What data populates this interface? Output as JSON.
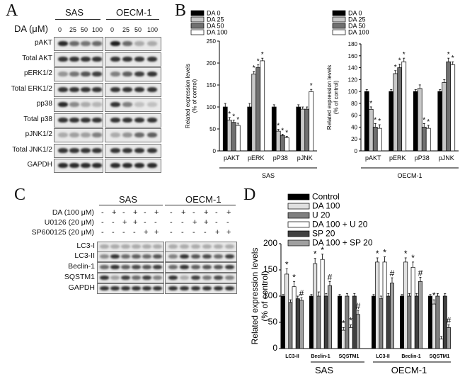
{
  "panels": {
    "A": "A",
    "B": "B",
    "C": "C",
    "D": "D"
  },
  "panelA": {
    "cell_lines": [
      "SAS",
      "OECM-1"
    ],
    "dose_label": "DA (μM)",
    "doses": [
      "0",
      "25",
      "50",
      "100",
      "0",
      "25",
      "50",
      "100"
    ],
    "rows": [
      "pAKT",
      "Total AKT",
      "pERK1/2",
      "Total ERK1/2",
      "pp38",
      "Total p38",
      "pJNK1/2",
      "Total JNK1/2",
      "GAPDH"
    ],
    "band_intensity": [
      [
        0.9,
        0.6,
        0.55,
        0.6,
        0.95,
        0.6,
        0.3,
        0.3
      ],
      [
        0.85,
        0.85,
        0.85,
        0.85,
        0.85,
        0.85,
        0.85,
        0.85
      ],
      [
        0.4,
        0.55,
        0.7,
        0.8,
        0.5,
        0.65,
        0.8,
        0.85
      ],
      [
        0.85,
        0.85,
        0.85,
        0.85,
        0.85,
        0.85,
        0.85,
        0.85
      ],
      [
        0.9,
        0.45,
        0.3,
        0.25,
        0.85,
        0.5,
        0.2,
        0.2
      ],
      [
        0.85,
        0.85,
        0.85,
        0.85,
        0.85,
        0.85,
        0.85,
        0.85
      ],
      [
        0.3,
        0.35,
        0.35,
        0.5,
        0.3,
        0.4,
        0.6,
        0.65
      ],
      [
        0.85,
        0.85,
        0.85,
        0.85,
        0.85,
        0.85,
        0.85,
        0.85
      ],
      [
        0.9,
        0.9,
        0.9,
        0.9,
        0.9,
        0.9,
        0.9,
        0.9
      ]
    ]
  },
  "panelC": {
    "cell_lines": [
      "SAS",
      "OECM-1"
    ],
    "treatments": [
      {
        "label": "DA (100 μM)",
        "marks": [
          "-",
          "+",
          "-",
          "+",
          "-",
          "+",
          "-",
          "+",
          "-",
          "+",
          "-",
          "+"
        ]
      },
      {
        "label": "U0126 (20 μM)",
        "marks": [
          "-",
          "-",
          "+",
          "+",
          "-",
          "-",
          "-",
          "-",
          "+",
          "+",
          "-",
          "-"
        ]
      },
      {
        "label": "SP600125 (20 μM)",
        "marks": [
          "-",
          "-",
          "-",
          "-",
          "+",
          "+",
          "-",
          "-",
          "-",
          "-",
          "+",
          "+"
        ]
      }
    ],
    "rows": [
      "LC3-I",
      "LC3-II",
      "Beclin-1",
      "SQSTM1",
      "GAPDH"
    ],
    "band_intensity": [
      [
        0.3,
        0.3,
        0.3,
        0.3,
        0.3,
        0.3,
        0.3,
        0.3,
        0.3,
        0.3,
        0.3,
        0.3
      ],
      [
        0.45,
        0.85,
        0.6,
        0.65,
        0.6,
        0.7,
        0.5,
        0.85,
        0.7,
        0.75,
        0.6,
        0.8
      ],
      [
        0.6,
        0.85,
        0.65,
        0.75,
        0.7,
        0.8,
        0.6,
        0.85,
        0.65,
        0.7,
        0.7,
        0.8
      ],
      [
        0.85,
        0.35,
        0.8,
        0.6,
        0.8,
        0.5,
        0.85,
        0.3,
        0.8,
        0.55,
        0.75,
        0.5
      ],
      [
        0.85,
        0.85,
        0.85,
        0.85,
        0.85,
        0.85,
        0.85,
        0.85,
        0.85,
        0.85,
        0.85,
        0.85
      ]
    ]
  },
  "chart_data": [
    {
      "type": "bar",
      "panel": "B-left",
      "categories": [
        "pAKT",
        "pERK",
        "pP38",
        "pJNK"
      ],
      "series": [
        {
          "name": "DA 0",
          "values": [
            100,
            100,
            100,
            100
          ],
          "errors": [
            8,
            8,
            5,
            5
          ],
          "stars": [
            false,
            false,
            false,
            false
          ]
        },
        {
          "name": "DA 25",
          "values": [
            70,
            175,
            45,
            95
          ],
          "errors": [
            6,
            6,
            4,
            5
          ],
          "stars": [
            true,
            true,
            true,
            false
          ]
        },
        {
          "name": "DA 50",
          "values": [
            65,
            190,
            35,
            95
          ],
          "errors": [
            5,
            6,
            3,
            5
          ],
          "stars": [
            true,
            true,
            true,
            false
          ]
        },
        {
          "name": "DA 100",
          "values": [
            58,
            205,
            30,
            135
          ],
          "errors": [
            5,
            6,
            3,
            5
          ],
          "stars": [
            true,
            true,
            true,
            true
          ]
        }
      ],
      "ylabel": "Related expression levels\n(% of control)",
      "ylim": [
        0,
        250
      ],
      "yticks": [
        "0",
        "50",
        "100",
        "150",
        "200",
        "250"
      ],
      "group_label": "SAS",
      "legend": "top-left",
      "colors": [
        "#000000",
        "#c8c8c8",
        "#707070",
        "#ffffff"
      ]
    },
    {
      "type": "bar",
      "panel": "B-right",
      "categories": [
        "pAKT",
        "pERK",
        "pP38",
        "pJNK"
      ],
      "series": [
        {
          "name": "DA 0",
          "values": [
            100,
            100,
            100,
            100
          ],
          "errors": [
            3,
            3,
            3,
            3
          ],
          "stars": [
            false,
            false,
            false,
            false
          ]
        },
        {
          "name": "DA 25",
          "values": [
            70,
            130,
            105,
            115
          ],
          "errors": [
            4,
            5,
            6,
            5
          ],
          "stars": [
            true,
            true,
            false,
            false
          ]
        },
        {
          "name": "DA 50",
          "values": [
            40,
            140,
            40,
            150
          ],
          "errors": [
            6,
            6,
            6,
            6
          ],
          "stars": [
            true,
            true,
            true,
            true
          ]
        },
        {
          "name": "DA 100",
          "values": [
            38,
            150,
            38,
            145
          ],
          "errors": [
            6,
            6,
            5,
            5
          ],
          "stars": [
            true,
            true,
            true,
            true
          ]
        }
      ],
      "ylabel": "Related expression levels\n(% of control)",
      "ylim": [
        0,
        180
      ],
      "yticks": [
        "0",
        "20",
        "40",
        "60",
        "80",
        "100",
        "120",
        "140",
        "160",
        "180"
      ],
      "group_label": "OECM-1",
      "legend": "top-left",
      "colors": [
        "#000000",
        "#c8c8c8",
        "#707070",
        "#ffffff"
      ]
    },
    {
      "type": "bar",
      "panel": "D",
      "categories": [
        "LC3-II",
        "Beclin-1",
        "SQSTM1",
        "LC3-II",
        "Beclin-1",
        "SQSTM1"
      ],
      "groups": [
        "SAS",
        "OECM-1"
      ],
      "series": [
        {
          "name": "Control",
          "values": [
            100,
            100,
            100,
            100,
            100,
            100
          ],
          "errors": [
            3,
            3,
            3,
            3,
            3,
            3
          ],
          "marks": [
            "",
            "",
            "",
            "",
            "",
            ""
          ]
        },
        {
          "name": "DA 100",
          "values": [
            142,
            162,
            35,
            165,
            165,
            85
          ],
          "errors": [
            10,
            10,
            5,
            8,
            8,
            8
          ],
          "marks": [
            "*",
            "*",
            "*",
            "*",
            "*",
            "*"
          ]
        },
        {
          "name": "U 20",
          "values": [
            88,
            100,
            100,
            95,
            100,
            100
          ],
          "errors": [
            5,
            8,
            5,
            5,
            5,
            5
          ],
          "marks": [
            "",
            "",
            "",
            "",
            "",
            ""
          ]
        },
        {
          "name": "DA 100 + U 20",
          "values": [
            118,
            170,
            40,
            165,
            155,
            18
          ],
          "errors": [
            10,
            10,
            5,
            10,
            10,
            5
          ],
          "marks": [
            "*",
            "*",
            "*",
            "*",
            "*",
            ""
          ]
        },
        {
          "name": "SP 20",
          "values": [
            95,
            100,
            100,
            100,
            100,
            100
          ],
          "errors": [
            5,
            5,
            5,
            5,
            5,
            5
          ],
          "marks": [
            "",
            "",
            "",
            "",
            "",
            ""
          ]
        },
        {
          "name": "DA 100 + SP 20",
          "values": [
            92,
            120,
            65,
            125,
            128,
            40
          ],
          "errors": [
            5,
            8,
            8,
            10,
            8,
            5
          ],
          "marks": [
            "#",
            "#",
            "#",
            "#",
            "#",
            "#"
          ]
        }
      ],
      "ylabel": "Related expression levels\n(% of control)",
      "ylim": [
        0,
        200
      ],
      "yticks": [
        "0",
        "50",
        "100",
        "150",
        "200"
      ],
      "legend": "top-left",
      "colors": [
        "#000000",
        "#e0e0e0",
        "#808080",
        "#ffffff",
        "#404040",
        "#a0a0a0"
      ]
    }
  ]
}
